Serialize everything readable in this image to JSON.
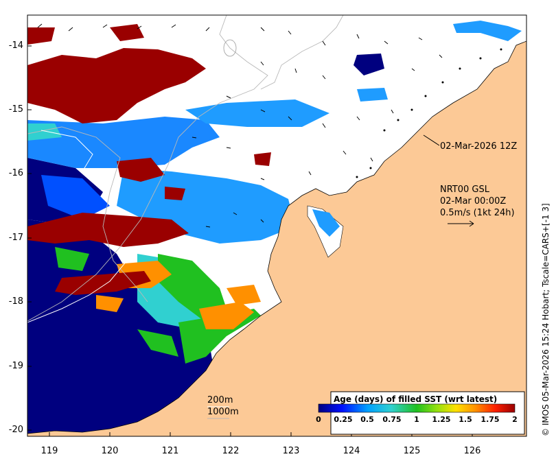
{
  "map": {
    "lon_range": [
      118.65,
      126.75
    ],
    "lat_range": [
      -20.05,
      -13.5
    ],
    "y_ticks": [
      "-14",
      "-15",
      "-16",
      "-17",
      "-18",
      "-19",
      "-20"
    ],
    "y_tick_values": [
      -14,
      -15,
      -16,
      -17,
      -18,
      -19,
      -20
    ],
    "x_ticks": [
      "119",
      "120",
      "121",
      "122",
      "123",
      "124",
      "125",
      "126"
    ],
    "x_tick_values": [
      119,
      120,
      121,
      122,
      123,
      124,
      125,
      126
    ],
    "colors": {
      "land": "#fcc996",
      "ocean_missing": "#ffffff",
      "coast": "#000000",
      "contour": "#b0b0b0"
    }
  },
  "annotations": {
    "timestamp": "02-Mar-2026 12Z",
    "product": "NRT00 GSL",
    "product_time": "02-Mar 00:00Z",
    "vector_scale": "0.5m/s (1kt 24h)",
    "isobath_200": "200m",
    "isobath_1000": "1000m",
    "credit": "© IMOS 05-Mar-2026 15:24 Hobart; Tscale=CARS+[-1 3]"
  },
  "colorbar": {
    "title": "Age (days) of filled SST (wrt latest)",
    "labels": [
      "0",
      "0.25",
      "0.5",
      "0.75",
      "1",
      "1.25",
      "1.5",
      "1.75",
      "2"
    ],
    "values": [
      0,
      0.25,
      0.5,
      0.75,
      1,
      1.25,
      1.5,
      1.75,
      2
    ],
    "range": [
      0,
      2
    ],
    "colors": [
      "#00007f",
      "#0010ff",
      "#00a0ff",
      "#30d0d0",
      "#20c020",
      "#90e010",
      "#ffe000",
      "#ff9000",
      "#ff2000",
      "#9a0000"
    ]
  }
}
